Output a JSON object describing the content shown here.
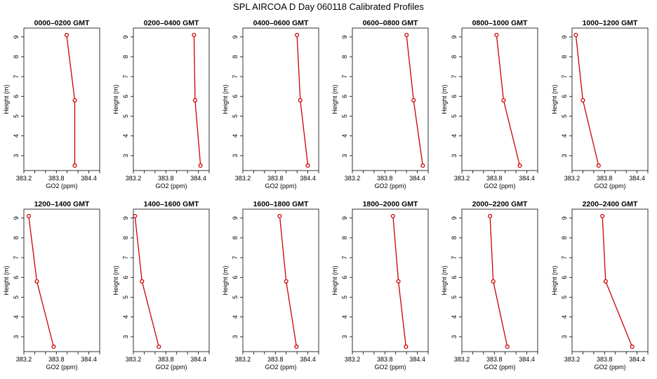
{
  "chart_data": {
    "type": "line",
    "title": "SPL AIRCOA D  Day 060118  Calibrated Profiles",
    "xlabel": "GO2 (ppm)",
    "ylabel": "Height (m)",
    "xlim": [
      383.2,
      384.6
    ],
    "ylim": [
      2.25,
      9.45
    ],
    "x_ticks": [
      "383.2",
      "383.8",
      "384.4"
    ],
    "y_ticks": [
      "3",
      "4",
      "5",
      "6",
      "7",
      "8",
      "9"
    ],
    "line_color": "#cc0000",
    "marker": "open-circle",
    "heights": [
      9.1,
      5.8,
      2.5
    ],
    "panels": [
      {
        "title": "0000–0200 GMT",
        "x": [
          383.99,
          384.14,
          384.14
        ]
      },
      {
        "title": "0200–0400 GMT",
        "x": [
          384.32,
          384.34,
          384.44
        ]
      },
      {
        "title": "0400–0600 GMT",
        "x": [
          384.2,
          384.26,
          384.4
        ]
      },
      {
        "title": "0600–0800 GMT",
        "x": [
          384.2,
          384.33,
          384.5
        ]
      },
      {
        "title": "0800–1000 GMT",
        "x": [
          383.84,
          383.97,
          384.27
        ]
      },
      {
        "title": "1000–1200 GMT",
        "x": [
          383.27,
          383.4,
          383.69
        ]
      },
      {
        "title": "1200–1400 GMT",
        "x": [
          383.29,
          383.44,
          383.75
        ]
      },
      {
        "title": "1400–1600 GMT",
        "x": [
          383.23,
          383.36,
          383.67
        ]
      },
      {
        "title": "1600–1800 GMT",
        "x": [
          383.88,
          384.0,
          384.19
        ]
      },
      {
        "title": "1800–2000 GMT",
        "x": [
          383.95,
          384.05,
          384.19
        ]
      },
      {
        "title": "2000–2200 GMT",
        "x": [
          383.72,
          383.78,
          384.04
        ]
      },
      {
        "title": "2200–2400 GMT",
        "x": [
          383.76,
          383.82,
          384.31
        ]
      }
    ]
  }
}
